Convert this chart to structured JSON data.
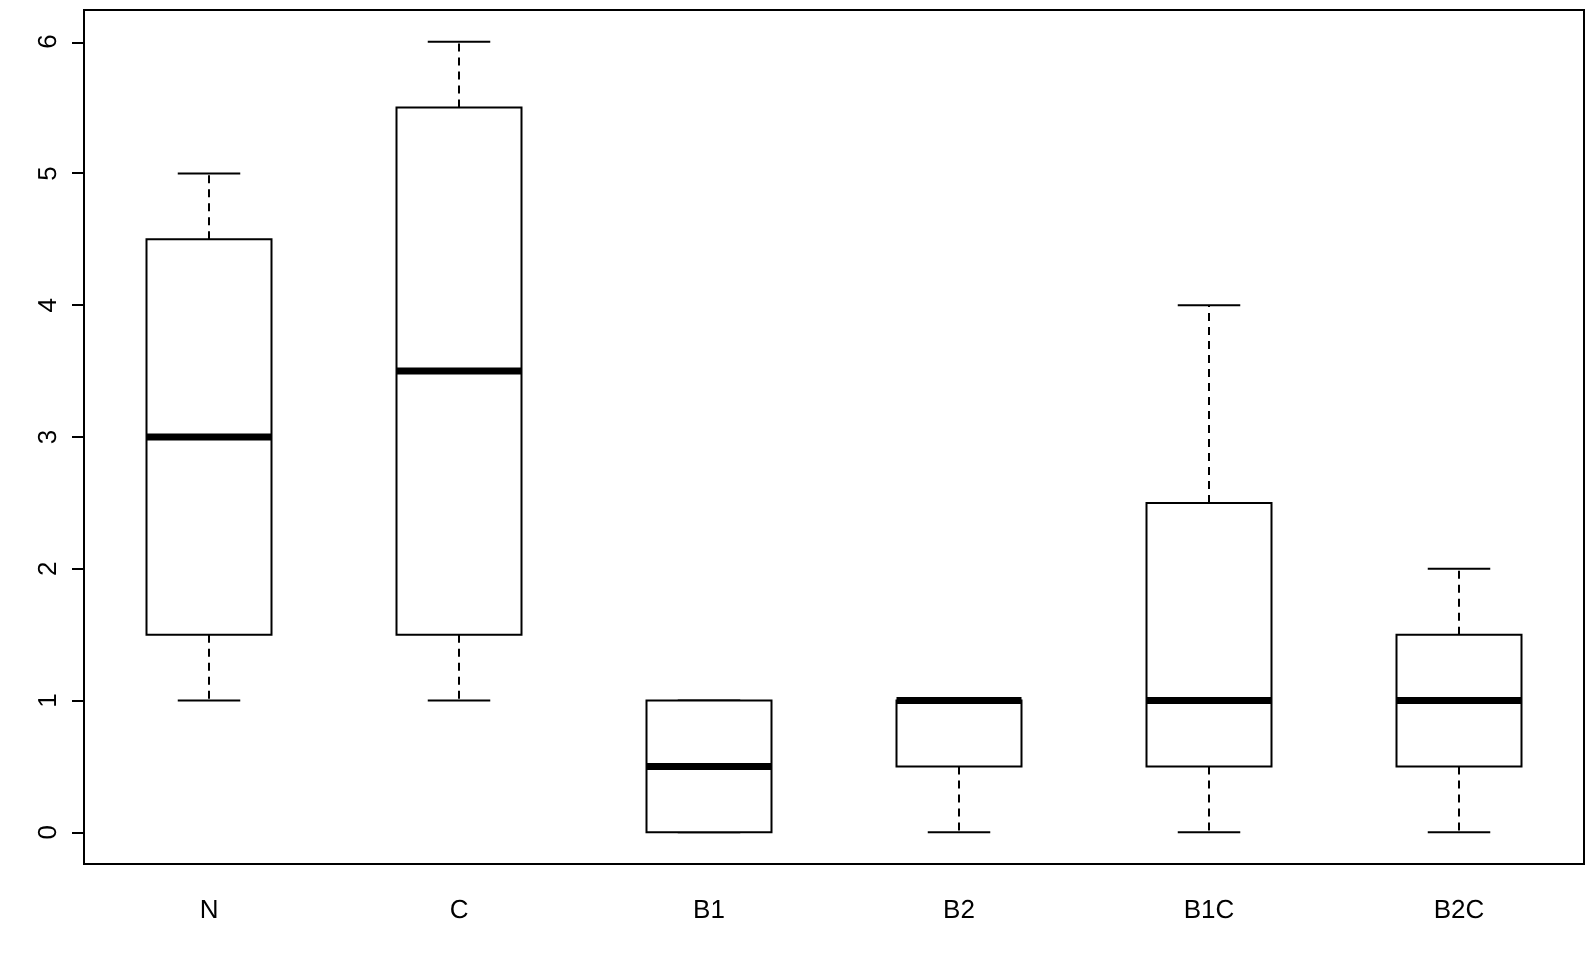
{
  "chart_data": {
    "type": "box",
    "categories": [
      "N",
      "C",
      "B1",
      "B2",
      "B1C",
      "B2C"
    ],
    "boxes": [
      {
        "low": 1,
        "q1": 1.5,
        "median": 3,
        "q3": 4.5,
        "high": 5
      },
      {
        "low": 1,
        "q1": 1.5,
        "median": 3.5,
        "q3": 5.5,
        "high": 6
      },
      {
        "low": 0,
        "q1": 0,
        "median": 0.5,
        "q3": 1,
        "high": 1
      },
      {
        "low": 0,
        "q1": 0.5,
        "median": 1,
        "q3": 1,
        "high": 1
      },
      {
        "low": 0,
        "q1": 0.5,
        "median": 1,
        "q3": 2.5,
        "high": 4
      },
      {
        "low": 0,
        "q1": 0.5,
        "median": 1,
        "q3": 1.5,
        "high": 2
      }
    ],
    "color": "#000000",
    "ylim": [
      -0.24,
      6.24
    ],
    "yticks": [
      0,
      1,
      2,
      3,
      4,
      5,
      6
    ]
  }
}
